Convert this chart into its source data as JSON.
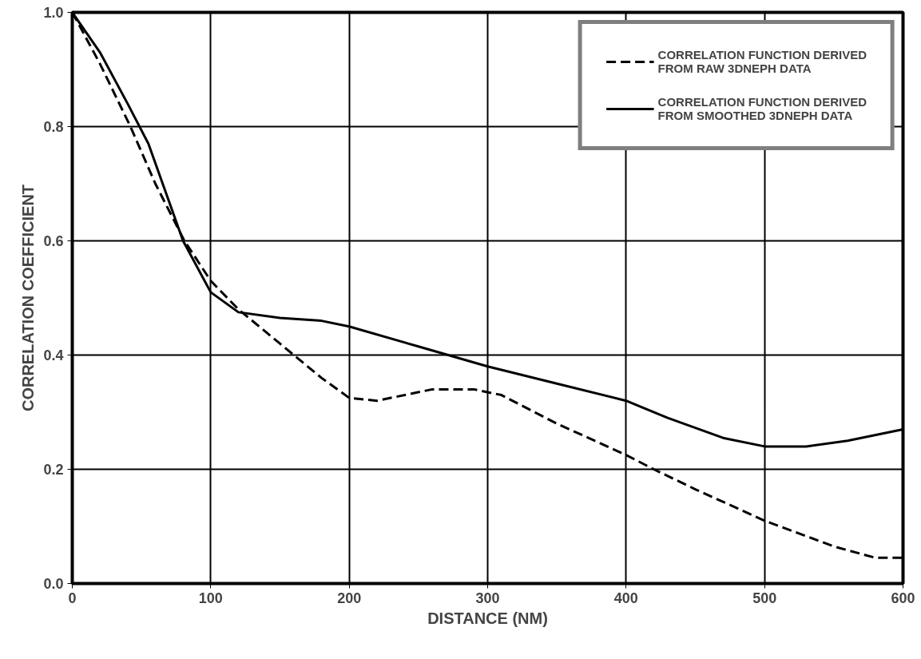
{
  "chart_data": {
    "type": "line",
    "xlabel": "DISTANCE (NM)",
    "ylabel": "CORRELATION COEFFICIENT",
    "xlim": [
      0,
      600
    ],
    "xticks": [
      0,
      100,
      200,
      300,
      400,
      500,
      600
    ],
    "ylim": [
      0.0,
      1.0
    ],
    "yticks": [
      {
        "value": 0,
        "label": "0.0"
      },
      0.2,
      0.4,
      0.6,
      0.8,
      {
        "value": 1,
        "label": "1.0"
      }
    ],
    "grid": true,
    "legend": "top right",
    "series": [
      {
        "name": "CORRELATION FUNCTION DERIVED\nFROM RAW 3DNEPH DATA",
        "color": "#000000",
        "line_style": "dashed",
        "x": [
          0,
          20,
          42,
          60,
          81,
          100,
          120,
          150,
          180,
          200,
          220,
          260,
          290,
          310,
          350,
          400,
          420,
          450,
          500,
          550,
          580,
          600
        ],
        "values": [
          1.0,
          0.91,
          0.8,
          0.7,
          0.6,
          0.53,
          0.48,
          0.42,
          0.36,
          0.325,
          0.32,
          0.34,
          0.34,
          0.33,
          0.28,
          0.225,
          0.2,
          0.165,
          0.11,
          0.065,
          0.045,
          0.045
        ]
      },
      {
        "name": "CORRELATION FUNCTION DERIVED\nFROM SMOOTHED 3DNEPH DATA",
        "color": "#000000",
        "line_style": "solid",
        "x": [
          0,
          20,
          40,
          55,
          80,
          100,
          120,
          150,
          180,
          200,
          250,
          300,
          350,
          400,
          430,
          470,
          500,
          530,
          560,
          600
        ],
        "values": [
          1.0,
          0.93,
          0.84,
          0.77,
          0.6,
          0.51,
          0.475,
          0.465,
          0.46,
          0.45,
          0.415,
          0.38,
          0.35,
          0.32,
          0.29,
          0.255,
          0.24,
          0.24,
          0.25,
          0.27
        ]
      }
    ]
  }
}
